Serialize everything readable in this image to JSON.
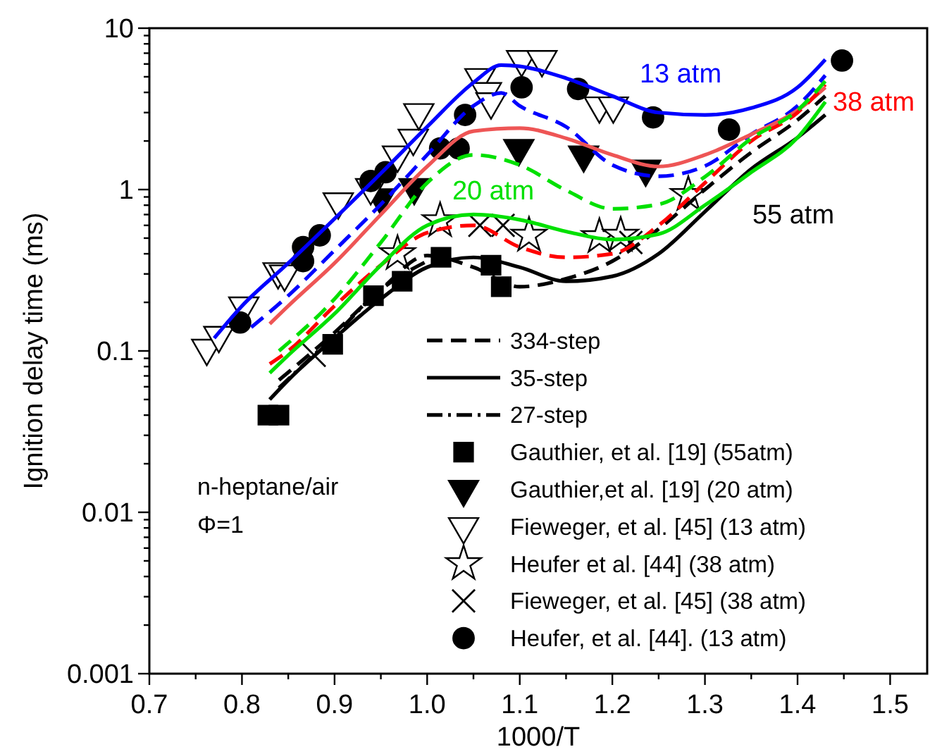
{
  "chart_data": {
    "type": "line",
    "xlabel": "1000/T",
    "ylabel": "Ignition delay time (ms)",
    "log": "y",
    "legend": "bottom right",
    "xlim": [
      0.7,
      1.54
    ],
    "xticks": [
      0.7,
      {
        "value": 0.75,
        "label": null
      },
      0.8,
      {
        "value": 0.85,
        "label": null
      },
      0.9,
      {
        "value": 0.95,
        "label": null
      },
      {
        "value": 1.0,
        "label": "1.0"
      },
      {
        "value": 1.05,
        "label": null
      },
      1.1,
      {
        "value": 1.15,
        "label": null
      },
      1.2,
      {
        "value": 1.25,
        "label": null
      },
      1.3,
      {
        "value": 1.35,
        "label": null
      },
      1.4,
      {
        "value": 1.45,
        "label": null
      },
      1.5
    ],
    "ylim": [
      0.001,
      10
    ],
    "yticks": [
      0.001,
      {
        "value": 0.002,
        "label": null
      },
      {
        "value": 0.003,
        "label": null
      },
      {
        "value": 0.004,
        "label": null
      },
      {
        "value": 0.005,
        "label": null
      },
      {
        "value": 0.006,
        "label": null
      },
      {
        "value": 0.007,
        "label": null
      },
      {
        "value": 0.008,
        "label": null
      },
      {
        "value": 0.009,
        "label": null
      },
      0.01,
      {
        "value": 0.02,
        "label": null
      },
      {
        "value": 0.03,
        "label": null
      },
      {
        "value": 0.04,
        "label": null
      },
      {
        "value": 0.05,
        "label": null
      },
      {
        "value": 0.06,
        "label": null
      },
      {
        "value": 0.07,
        "label": null
      },
      {
        "value": 0.08,
        "label": null
      },
      {
        "value": 0.09,
        "label": null
      },
      0.1,
      {
        "value": 0.2,
        "label": null
      },
      {
        "value": 0.3,
        "label": null
      },
      {
        "value": 0.4,
        "label": null
      },
      {
        "value": 0.5,
        "label": null
      },
      {
        "value": 0.6,
        "label": null
      },
      {
        "value": 0.7,
        "label": null
      },
      {
        "value": 0.8,
        "label": null
      },
      {
        "value": 0.9,
        "label": null
      },
      1,
      {
        "value": 2,
        "label": null
      },
      {
        "value": 3,
        "label": null
      },
      {
        "value": 4,
        "label": null
      },
      {
        "value": 5,
        "label": null
      },
      {
        "value": 6,
        "label": null
      },
      {
        "value": 7,
        "label": null
      },
      {
        "value": 8,
        "label": null
      },
      {
        "value": 9,
        "label": null
      },
      10
    ],
    "annotations": [
      "13 atm",
      "38 atm",
      "20 atm",
      "55 atm",
      "n-heptane/air",
      "Φ=1"
    ],
    "series": [
      {
        "name": "334-step",
        "line_style": "dashed",
        "color": "#000000",
        "x": [
          0.84,
          0.9,
          0.95,
          1.0,
          1.05,
          1.1,
          1.15,
          1.2,
          1.25,
          1.3,
          1.35,
          1.4,
          1.43
        ],
        "values": [
          0.066,
          0.13,
          0.24,
          0.39,
          0.33,
          0.25,
          0.28,
          0.36,
          0.57,
          1.0,
          1.7,
          2.7,
          3.8
        ]
      },
      {
        "name": "35-step",
        "line_style": "solid",
        "color": "#000000",
        "x": [
          0.83,
          0.85,
          0.9,
          0.95,
          1.0,
          1.05,
          1.1,
          1.15,
          1.2,
          1.25,
          1.3,
          1.35,
          1.4,
          1.43
        ],
        "values": [
          0.05,
          0.066,
          0.12,
          0.21,
          0.33,
          0.38,
          0.33,
          0.27,
          0.29,
          0.4,
          0.73,
          1.34,
          2.1,
          2.9
        ]
      },
      {
        "name": "27-step",
        "line_style": "dashdot",
        "color": "#000000",
        "x": [
          0.84,
          0.9,
          0.95,
          1.0
        ],
        "values": [
          0.059,
          0.125,
          0.24,
          0.36
        ]
      },
      {
        "name": "Gauthier, et al. [19] (55atm)",
        "type": "scatter",
        "marker": "square",
        "color": "#000000",
        "x": [
          0.828,
          0.84,
          0.898,
          0.942,
          0.973,
          1.015,
          1.069,
          1.08
        ],
        "values": [
          0.04,
          0.04,
          0.11,
          0.22,
          0.27,
          0.38,
          0.34,
          0.25
        ]
      },
      {
        "name": "Gauthier,et al. [19] (20 atm)",
        "type": "scatter",
        "marker": "triangle",
        "color": "#000000",
        "x": [
          0.95,
          0.986,
          1.099,
          1.169,
          1.236
        ],
        "values": [
          0.89,
          1.03,
          1.8,
          1.64,
          1.34
        ]
      },
      {
        "name": "Fieweger, et al. [45] (13 atm)",
        "type": "scatter",
        "marker": "triangle",
        "color": "#ffffff",
        "x": [
          0.762,
          0.775,
          0.802,
          0.839,
          0.846,
          0.904,
          0.939,
          0.968,
          0.985,
          0.991,
          1.057,
          1.064,
          1.069,
          1.102,
          1.124,
          1.186,
          1.201
        ],
        "values": [
          0.104,
          0.125,
          0.19,
          0.31,
          0.3,
          0.84,
          1.03,
          1.64,
          2.08,
          3.0,
          4.95,
          4.05,
          3.5,
          6.4,
          6.4,
          3.3,
          3.3
        ]
      },
      {
        "name": "Heufer et al. [44] (38 atm)",
        "type": "scatter",
        "marker": "star",
        "color": "#ffffff",
        "x": [
          0.968,
          1.014,
          1.11,
          1.186,
          1.209,
          1.282
        ],
        "values": [
          0.4,
          0.64,
          0.52,
          0.51,
          0.52,
          0.93
        ]
      },
      {
        "name": "Fieweger, et al. [45] (38 atm)",
        "type": "scatter",
        "marker": "cross",
        "color": "#000000",
        "x": [
          0.878,
          1.057,
          1.082,
          1.22
        ],
        "values": [
          0.094,
          0.6,
          0.6,
          0.47
        ]
      },
      {
        "name": "Heufer, et al. [44]. (13 atm)",
        "type": "scatter",
        "marker": "circle",
        "color": "#000000",
        "x": [
          0.798,
          0.866,
          0.866,
          0.884,
          0.939,
          0.955,
          1.014,
          1.034,
          1.041,
          1.102,
          1.163,
          1.244,
          1.326,
          1.448
        ],
        "values": [
          0.15,
          0.36,
          0.44,
          0.52,
          1.13,
          1.28,
          1.8,
          1.8,
          2.9,
          4.3,
          4.2,
          2.8,
          2.35,
          6.3
        ]
      },
      {
        "line_style": "solid",
        "color": "#0000ff",
        "x": [
          0.77,
          0.8,
          0.85,
          0.9,
          0.95,
          1.0,
          1.05,
          1.08,
          1.1,
          1.15,
          1.2,
          1.25,
          1.3,
          1.35,
          1.4,
          1.43
        ],
        "values": [
          0.12,
          0.19,
          0.35,
          0.66,
          1.26,
          2.45,
          4.6,
          5.9,
          5.8,
          4.9,
          3.8,
          3.0,
          2.9,
          3.2,
          4.3,
          6.4
        ]
      },
      {
        "line_style": "dashed",
        "color": "#0000ff",
        "x": [
          0.81,
          0.85,
          0.9,
          0.95,
          1.0,
          1.05,
          1.08,
          1.1,
          1.15,
          1.2,
          1.25,
          1.3,
          1.35,
          1.4,
          1.43
        ],
        "values": [
          0.14,
          0.22,
          0.42,
          0.81,
          1.64,
          3.3,
          3.97,
          3.3,
          2.45,
          1.42,
          1.21,
          1.4,
          2.2,
          3.3,
          5.1
        ]
      },
      {
        "line_style": "solid",
        "color": "#ee5555",
        "x": [
          0.83,
          0.85,
          0.9,
          0.95,
          1.0,
          1.05,
          1.1,
          1.15,
          1.2,
          1.25,
          1.3,
          1.35,
          1.4,
          1.43
        ],
        "values": [
          0.147,
          0.19,
          0.35,
          0.7,
          1.39,
          2.3,
          2.4,
          2.08,
          1.64,
          1.39,
          1.64,
          2.2,
          3.1,
          4.3
        ]
      },
      {
        "line_style": "dashed",
        "color": "#ff0000",
        "x": [
          0.83,
          0.85,
          0.9,
          0.95,
          1.0,
          1.05,
          1.1,
          1.15,
          1.2,
          1.25,
          1.3,
          1.35,
          1.4,
          1.43
        ],
        "values": [
          0.083,
          0.1,
          0.19,
          0.34,
          0.54,
          0.6,
          0.44,
          0.38,
          0.4,
          0.6,
          1.1,
          2.0,
          3.0,
          4.47
        ]
      },
      {
        "line_style": "solid",
        "color": "#00e000",
        "x": [
          0.83,
          0.85,
          0.9,
          0.95,
          1.0,
          1.05,
          1.1,
          1.15,
          1.2,
          1.25,
          1.3,
          1.35,
          1.4,
          1.43
        ],
        "values": [
          0.073,
          0.094,
          0.17,
          0.34,
          0.6,
          0.7,
          0.65,
          0.55,
          0.49,
          0.53,
          0.8,
          1.28,
          2.1,
          3.5
        ]
      },
      {
        "line_style": "dashed",
        "color": "#00e000",
        "x": [
          0.84,
          0.9,
          0.95,
          1.0,
          1.05,
          1.1,
          1.15,
          1.2,
          1.25,
          1.3,
          1.35,
          1.4,
          1.43
        ],
        "values": [
          0.1,
          0.21,
          0.47,
          1.1,
          1.64,
          1.42,
          0.99,
          0.76,
          0.81,
          1.2,
          2.07,
          3.1,
          4.7
        ]
      }
    ]
  }
}
